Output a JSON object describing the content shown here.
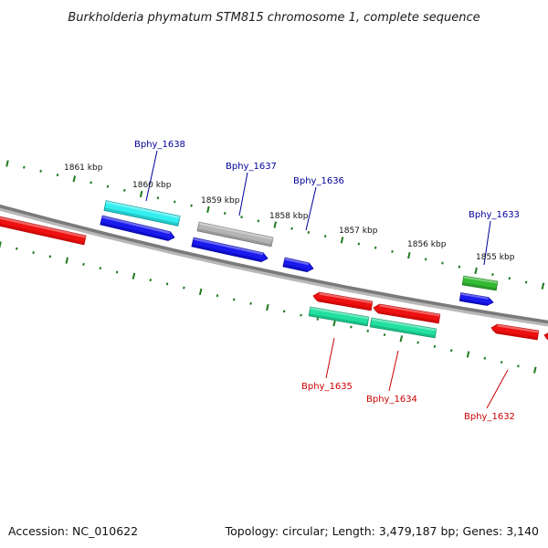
{
  "title": "Burkholderia phymatum STM815 chromosome 1, complete sequence",
  "footer": {
    "accession": "Accession: NC_010622",
    "summary": "Topology: circular; Length: 3,479,187 bp; Genes: 3,140"
  },
  "colors": {
    "backbone": "#808080",
    "ticks": "#1e7a1e",
    "forward_label": "#000099",
    "reverse_label": "#cc0000",
    "red": "#ee1111",
    "blue": "#1111dd",
    "cyan": "#22dddd",
    "grey": "#aaaaaa",
    "green": "#33bb33",
    "aqua": "#22dd99"
  },
  "kbp_labels": [
    "1861 kbp",
    "1860 kbp",
    "1859 kbp",
    "1858 kbp",
    "1857 kbp",
    "1856 kbp",
    "1855 kbp"
  ],
  "labels": [
    {
      "id": "bphy-1638",
      "text": "Bphy_1638",
      "strand": "forward"
    },
    {
      "id": "bphy-1637",
      "text": "Bphy_1637",
      "strand": "forward"
    },
    {
      "id": "bphy-1636",
      "text": "Bphy_1636",
      "strand": "forward"
    },
    {
      "id": "bphy-1633",
      "text": "Bphy_1633",
      "strand": "forward"
    },
    {
      "id": "bphy-1635",
      "text": "Bphy_1635",
      "strand": "reverse"
    },
    {
      "id": "bphy-1634",
      "text": "Bphy_1634",
      "strand": "reverse"
    },
    {
      "id": "bphy-1632",
      "text": "Bphy_1632",
      "strand": "reverse"
    }
  ]
}
